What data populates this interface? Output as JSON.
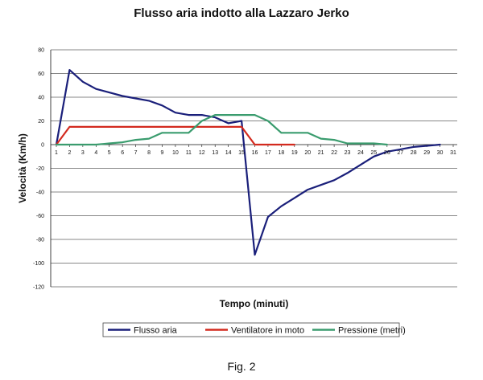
{
  "chart_data": {
    "type": "line",
    "title": "Flusso aria indotto alla Lazzaro Jerko",
    "xlabel": "Tempo (minuti)",
    "ylabel": "Velocità (Km/h)",
    "xlim": [
      1,
      31
    ],
    "ylim": [
      -120,
      80
    ],
    "x_ticks": [
      1,
      2,
      3,
      4,
      5,
      6,
      7,
      8,
      9,
      10,
      11,
      12,
      13,
      14,
      15,
      16,
      17,
      18,
      19,
      20,
      21,
      22,
      23,
      24,
      25,
      26,
      27,
      28,
      29,
      30,
      31
    ],
    "y_ticks": [
      80,
      60,
      40,
      20,
      0,
      -20,
      -40,
      -60,
      -80,
      -100,
      -120
    ],
    "grid": true,
    "legend_position": "bottom",
    "series": [
      {
        "name": "Flusso aria",
        "color": "#1a1f7a",
        "x": [
          1,
          2,
          3,
          4,
          5,
          6,
          7,
          8,
          9,
          10,
          11,
          12,
          13,
          14,
          15,
          16,
          17,
          18,
          19,
          20,
          21,
          22,
          23,
          24,
          25,
          26,
          27,
          28,
          29,
          30
        ],
        "values": [
          0,
          63,
          53,
          47,
          44,
          41,
          39,
          37,
          33,
          27,
          25,
          25,
          23,
          18,
          20,
          -93,
          -61,
          -52,
          -45,
          -38,
          -34,
          -30,
          -24,
          -17,
          -10,
          -6,
          -4,
          -2,
          -1,
          0
        ]
      },
      {
        "name": "Ventilatore in moto",
        "color": "#d32a1e",
        "x": [
          1,
          2,
          3,
          4,
          5,
          6,
          7,
          8,
          9,
          10,
          11,
          12,
          13,
          14,
          15,
          16,
          17,
          18,
          19
        ],
        "values": [
          0,
          15,
          15,
          15,
          15,
          15,
          15,
          15,
          15,
          15,
          15,
          15,
          15,
          15,
          15,
          0,
          0,
          0,
          0
        ]
      },
      {
        "name": "Pressione (metri)",
        "color": "#3a9c6e",
        "x": [
          1,
          2,
          3,
          4,
          5,
          6,
          7,
          8,
          9,
          10,
          11,
          12,
          13,
          14,
          15,
          16,
          17,
          18,
          19,
          20,
          21,
          22,
          23,
          24,
          25,
          26
        ],
        "values": [
          0,
          0,
          0,
          0,
          1,
          2,
          4,
          5,
          10,
          10,
          10,
          20,
          25,
          25,
          25,
          25,
          20,
          10,
          10,
          10,
          5,
          4,
          1,
          1,
          1,
          0
        ]
      }
    ]
  },
  "caption": "Fig. 2"
}
